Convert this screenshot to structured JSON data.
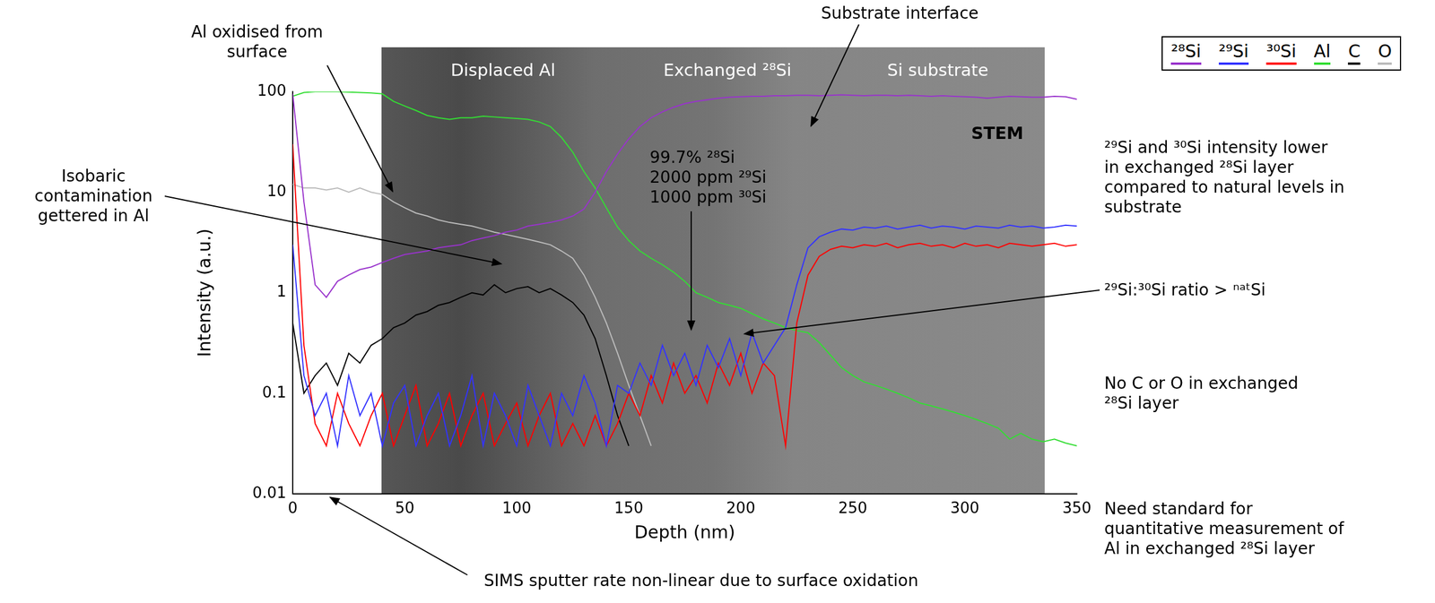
{
  "chart_data": {
    "type": "line",
    "x_label": "Depth (nm)",
    "y_label": "Intensity (a.u.)",
    "log": "y",
    "grid": false,
    "legend": "top-right",
    "xlim": [
      0,
      350
    ],
    "xticks": [
      0,
      50,
      100,
      150,
      200,
      250,
      300,
      350
    ],
    "ylim": [
      0.01,
      100
    ],
    "yticks": [
      0.01,
      0.1,
      1,
      10,
      100
    ],
    "x": [
      0,
      5,
      10,
      15,
      20,
      25,
      30,
      35,
      40,
      45,
      50,
      55,
      60,
      65,
      70,
      75,
      80,
      85,
      90,
      95,
      100,
      105,
      110,
      115,
      120,
      125,
      130,
      135,
      140,
      145,
      150,
      155,
      160,
      165,
      170,
      175,
      180,
      185,
      190,
      195,
      200,
      205,
      210,
      215,
      220,
      225,
      230,
      235,
      240,
      245,
      250,
      255,
      260,
      265,
      270,
      275,
      280,
      285,
      290,
      295,
      300,
      305,
      310,
      315,
      320,
      325,
      330,
      335,
      340,
      345,
      350
    ],
    "series": [
      {
        "name": "²⁸Si",
        "color": "#9933cc",
        "values": [
          95,
          8,
          1.2,
          0.9,
          1.3,
          1.5,
          1.7,
          1.8,
          2.0,
          2.2,
          2.4,
          2.5,
          2.6,
          2.8,
          2.9,
          3.0,
          3.3,
          3.5,
          3.7,
          4.0,
          4.2,
          4.6,
          4.8,
          5.0,
          5.3,
          5.8,
          6.8,
          10,
          16,
          24,
          34,
          45,
          55,
          63,
          70,
          76,
          80,
          83,
          86,
          88,
          89,
          90,
          90,
          91,
          91,
          92,
          92,
          91,
          92,
          93,
          92,
          91,
          92,
          92,
          91,
          92,
          91,
          90,
          91,
          90,
          89,
          88,
          86,
          88,
          90,
          89,
          88,
          88,
          90,
          89,
          84
        ]
      },
      {
        "name": "²⁹Si",
        "color": "#3333ff",
        "values": [
          3,
          0.15,
          0.06,
          0.1,
          0.03,
          0.15,
          0.06,
          0.1,
          0.03,
          0.08,
          0.12,
          0.03,
          0.06,
          0.1,
          0.03,
          0.06,
          0.15,
          0.03,
          0.1,
          0.06,
          0.03,
          0.12,
          0.06,
          0.03,
          0.1,
          0.06,
          0.15,
          0.08,
          0.03,
          0.12,
          0.1,
          0.2,
          0.12,
          0.3,
          0.15,
          0.25,
          0.12,
          0.3,
          0.18,
          0.35,
          0.15,
          0.4,
          0.2,
          0.3,
          0.45,
          1.2,
          2.8,
          3.6,
          4.0,
          4.3,
          4.2,
          4.5,
          4.4,
          4.6,
          4.3,
          4.5,
          4.7,
          4.4,
          4.6,
          4.5,
          4.3,
          4.6,
          4.5,
          4.4,
          4.7,
          4.5,
          4.6,
          4.4,
          4.5,
          4.7,
          4.6
        ]
      },
      {
        "name": "³⁰Si",
        "color": "#ff0000",
        "values": [
          30,
          0.3,
          0.05,
          0.03,
          0.1,
          0.05,
          0.03,
          0.06,
          0.1,
          0.03,
          0.06,
          0.12,
          0.03,
          0.05,
          0.1,
          0.03,
          0.06,
          0.1,
          0.03,
          0.05,
          0.08,
          0.03,
          0.06,
          0.1,
          0.03,
          0.05,
          0.03,
          0.06,
          0.03,
          0.05,
          0.1,
          0.06,
          0.15,
          0.08,
          0.2,
          0.1,
          0.15,
          0.08,
          0.2,
          0.12,
          0.25,
          0.1,
          0.2,
          0.15,
          0.03,
          0.5,
          1.5,
          2.3,
          2.7,
          2.9,
          2.8,
          3.0,
          2.9,
          3.1,
          2.8,
          3.0,
          3.1,
          2.9,
          3.0,
          2.8,
          3.1,
          2.9,
          3.0,
          2.8,
          3.1,
          3.0,
          2.9,
          3.0,
          3.1,
          2.9,
          3.0
        ]
      },
      {
        "name": "Al",
        "color": "#33dd33",
        "values": [
          90,
          98,
          100,
          100,
          100,
          99,
          98,
          97,
          95,
          80,
          72,
          65,
          58,
          55,
          53,
          55,
          55,
          57,
          56,
          55,
          54,
          53,
          50,
          45,
          35,
          25,
          16,
          11,
          7,
          4.5,
          3.3,
          2.6,
          2.2,
          1.9,
          1.6,
          1.3,
          1.0,
          0.9,
          0.8,
          0.75,
          0.7,
          0.62,
          0.55,
          0.5,
          0.45,
          0.42,
          0.4,
          0.32,
          0.24,
          0.18,
          0.15,
          0.13,
          0.12,
          0.11,
          0.1,
          0.09,
          0.08,
          0.075,
          0.07,
          0.065,
          0.06,
          0.055,
          0.05,
          0.045,
          0.035,
          0.04,
          0.035,
          0.033,
          0.035,
          0.032,
          0.03
        ]
      },
      {
        "name": "C",
        "color": "#000000",
        "values": [
          0.5,
          0.1,
          0.15,
          0.2,
          0.12,
          0.25,
          0.2,
          0.3,
          0.35,
          0.45,
          0.5,
          0.6,
          0.65,
          0.75,
          0.8,
          0.9,
          1.0,
          0.95,
          1.2,
          1.0,
          1.1,
          1.15,
          1.0,
          1.1,
          0.95,
          0.8,
          0.6,
          0.35,
          0.15,
          0.06,
          0.03,
          null,
          null,
          null,
          null,
          null,
          null,
          null,
          null,
          null,
          null,
          null,
          null,
          null,
          null,
          null,
          null,
          null,
          null,
          null,
          null,
          null,
          null,
          null,
          null,
          null,
          null,
          null,
          null,
          null,
          null,
          null,
          null,
          null,
          null,
          null,
          null,
          null,
          null,
          null,
          null
        ]
      },
      {
        "name": "O",
        "color": "#bbbbbb",
        "values": [
          12,
          11,
          11,
          10.5,
          11,
          10,
          11,
          10,
          9.5,
          8,
          7,
          6.2,
          5.8,
          5.3,
          5,
          4.8,
          4.6,
          4.3,
          4,
          3.8,
          3.6,
          3.4,
          3.2,
          3,
          2.6,
          2.2,
          1.5,
          0.9,
          0.5,
          0.25,
          0.12,
          0.06,
          0.03,
          null,
          null,
          null,
          null,
          null,
          null,
          null,
          null,
          null,
          null,
          null,
          null,
          null,
          null,
          null,
          null,
          null,
          null,
          null,
          null,
          null,
          null,
          null,
          null,
          null,
          null,
          null,
          null,
          null,
          null,
          null,
          null,
          null,
          null,
          null,
          null,
          null,
          null
        ]
      }
    ],
    "image_labels": [
      "Displaced Al",
      "Exchanged ²⁸Si",
      "Si substrate",
      "STEM"
    ],
    "annotations": [
      [
        "Al oxidised from",
        "surface"
      ],
      [
        "Isobaric",
        "contamination",
        "gettered in Al"
      ],
      [
        "Substrate interface"
      ],
      [
        "99.7% ²⁸Si",
        "2000 ppm ²⁹Si",
        "1000 ppm ³⁰Si"
      ],
      [
        "²⁹Si and ³⁰Si intensity lower",
        "in exchanged ²⁸Si layer",
        "compared to natural levels in",
        "substrate"
      ],
      [
        "²⁹Si:³⁰Si ratio > ⁿᵃᵗSi"
      ],
      [
        "No C or O in exchanged",
        "²⁸Si layer"
      ],
      [
        "Need standard for",
        "quantitative measurement of",
        "Al in exchanged ²⁸Si layer"
      ],
      [
        "SIMS sputter rate non-linear due to surface oxidation"
      ]
    ]
  }
}
